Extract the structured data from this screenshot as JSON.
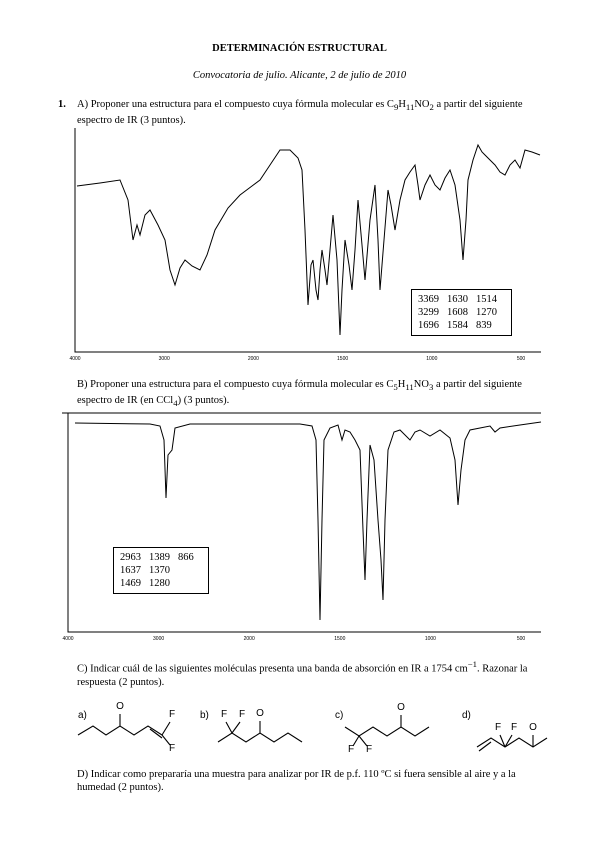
{
  "header": {
    "title": "DETERMINACIÓN ESTRUCTURAL",
    "subtitle": "Convocatoria de julio. Alicante, 2 de julio de 2010"
  },
  "question": {
    "number": "1.",
    "a": {
      "parts": [
        "A) Proponer una estructura para el compuesto cuya fórmula molecular es C",
        "9",
        "H",
        "11",
        "NO",
        "2",
        " a partir del siguiente espectro de IR (3 puntos)."
      ],
      "x_ticks": [
        "4000",
        "3000",
        "2000",
        "1500",
        "1000",
        "500"
      ],
      "peaks": [
        [
          "3369",
          "1630",
          "1514"
        ],
        [
          "3299",
          "1608",
          "1270"
        ],
        [
          "1696",
          "1584",
          "839"
        ]
      ]
    },
    "b": {
      "parts": [
        "B) Proponer una estructura para el compuesto cuya fórmula molecular es C",
        "5",
        "H",
        "11",
        "NO",
        "3",
        " a partir del siguiente espectro de IR (en CCl",
        "4",
        ") (3 puntos)."
      ],
      "x_ticks": [
        "4000",
        "3000",
        "2000",
        "1500",
        "1000",
        "500"
      ],
      "peaks": [
        [
          "2963",
          "1389",
          "866"
        ],
        [
          "1637",
          "1370"
        ],
        [
          "1469",
          "1280"
        ]
      ]
    },
    "c": {
      "parts": [
        "C) Indicar cuál de las siguientes moléculas presenta una banda de absorción en IR a 1754 cm",
        "−1",
        ". Razonar la respuesta (2 puntos)."
      ],
      "molecules": [
        {
          "label": "a)",
          "atoms": [
            "O",
            "F",
            "F"
          ]
        },
        {
          "label": "b)",
          "atoms": [
            "F",
            "F",
            "O"
          ]
        },
        {
          "label": "c)",
          "atoms": [
            "O",
            "F",
            "F"
          ]
        },
        {
          "label": "d)",
          "atoms": [
            "F",
            "F",
            "O"
          ]
        }
      ]
    },
    "d": {
      "text": "D) Indicar como prepararía una muestra para analizar por IR de p.f. 110 ºC si fuera sensible al aire y a la humedad (2 puntos)."
    }
  }
}
